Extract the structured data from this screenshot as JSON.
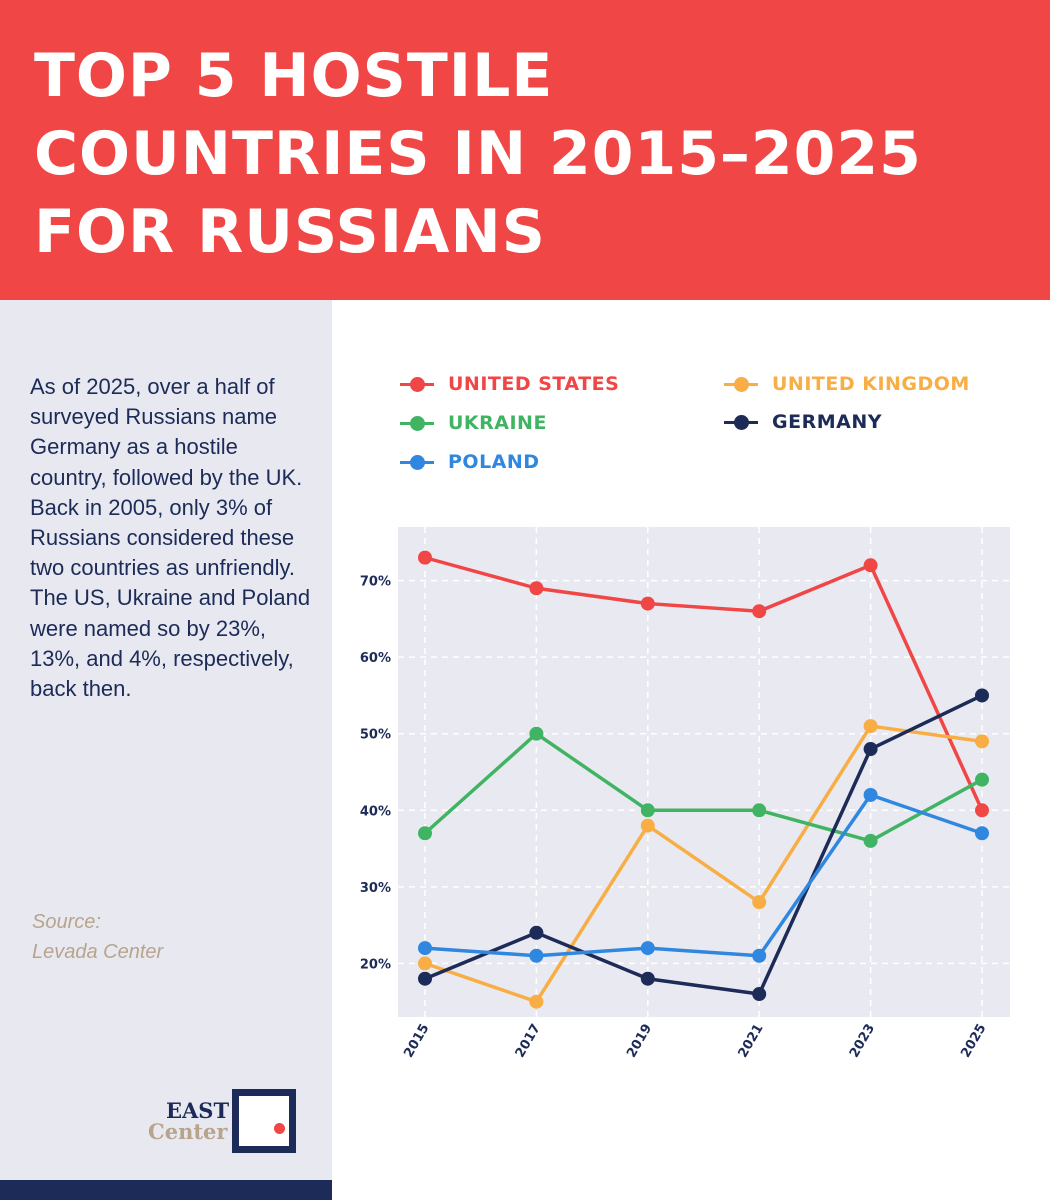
{
  "header": {
    "title_lines": [
      "TOP 5 HOSTILE",
      "COUNTRIES IN 2015–2025",
      "FOR RUSSIANS"
    ]
  },
  "sidebar": {
    "description": "As of 2025, over a half of surveyed Russians name Germany as a hostile country, followed by the UK. Back in 2005, only 3% of Russians considered these two countries as unfriendly. The US, Ukraine and Poland were named so by 23%, 13%, and 4%, respectively, back then.",
    "source_label": "Source:",
    "source_name": "Levada Center",
    "logo_top": "EAST",
    "logo_bottom": "Center"
  },
  "colors": {
    "header_bg": "#f04646",
    "sidebar_bg": "#e8e9f0",
    "navy": "#1c2b57",
    "plot_bg": "#e9eaf1"
  },
  "chart_data": {
    "type": "line",
    "title": "TOP 5 HOSTILE COUNTRIES IN 2015–2025 FOR RUSSIANS",
    "xlabel": "",
    "ylabel": "",
    "x": [
      "2015",
      "2017",
      "2019",
      "2021",
      "2023",
      "2025"
    ],
    "ylim": [
      13,
      77
    ],
    "yticks": [
      20,
      30,
      40,
      50,
      60,
      70
    ],
    "ytick_labels": [
      "20%",
      "30%",
      "40%",
      "50%",
      "60%",
      "70%"
    ],
    "grid": true,
    "legend_position": "top",
    "series": [
      {
        "name": "UNITED STATES",
        "color": "#f04646",
        "values": [
          73,
          69,
          67,
          66,
          72,
          40
        ]
      },
      {
        "name": "UNITED KINGDOM",
        "color": "#f8ae44",
        "values": [
          20,
          15,
          38,
          28,
          51,
          49
        ]
      },
      {
        "name": "UKRAINE",
        "color": "#40b463",
        "values": [
          37,
          50,
          40,
          40,
          36,
          44
        ]
      },
      {
        "name": "GERMANY",
        "color": "#1c2b57",
        "values": [
          18,
          24,
          18,
          16,
          48,
          55
        ]
      },
      {
        "name": "POLAND",
        "color": "#2f87e0",
        "values": [
          22,
          21,
          22,
          21,
          42,
          37
        ]
      }
    ]
  }
}
